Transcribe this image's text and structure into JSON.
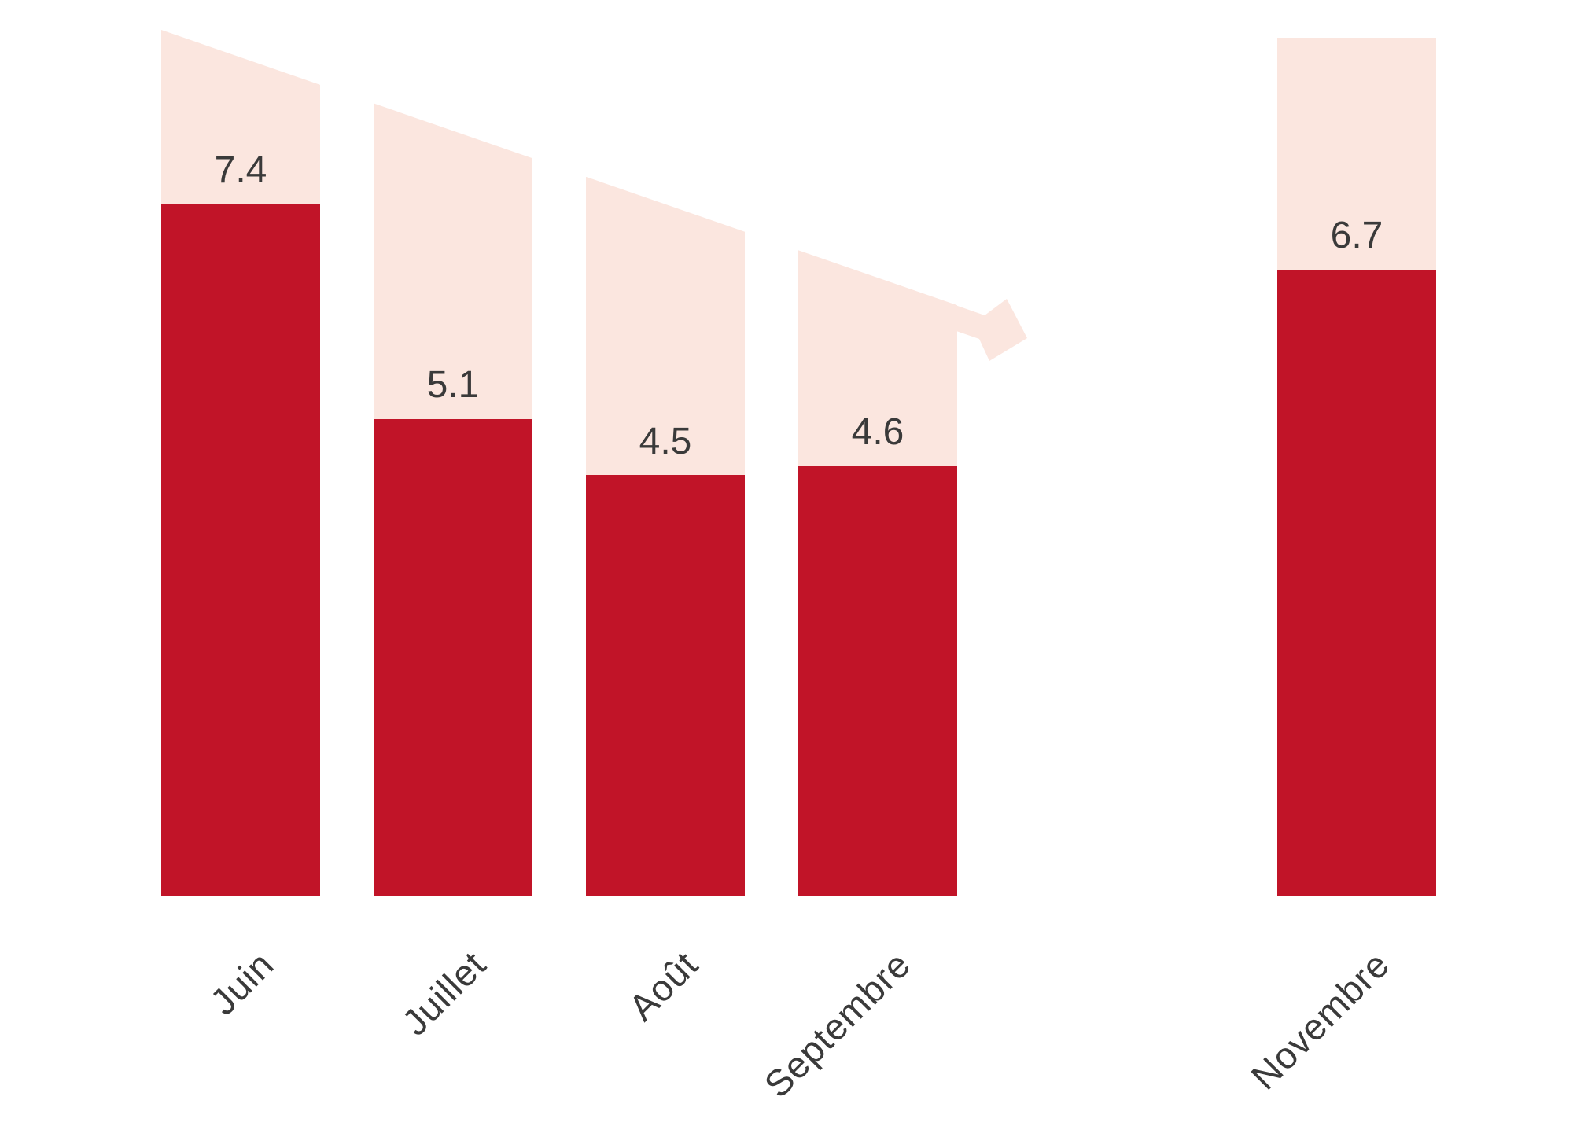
{
  "chart_data": {
    "type": "bar",
    "categories": [
      "Juin",
      "Juillet",
      "Août",
      "Septembre",
      "Novembre"
    ],
    "values": [
      7.4,
      5.1,
      4.5,
      4.6,
      6.7
    ],
    "title": "",
    "xlabel": "",
    "ylabel": "",
    "ylim": [
      0,
      9.3
    ],
    "grid": false,
    "legend": false,
    "bar_color": "#C11428",
    "band_color": "#FBE6DF",
    "label_color": "#3A3A3A",
    "x_label_rotation_deg": 45,
    "trend_arrow": {
      "present": true,
      "direction": "down-right",
      "color": "#FBE6DF"
    },
    "notes": "Pink background bands have slanted tops following the descending trend arrow; gap between Septembre and Novembre"
  }
}
